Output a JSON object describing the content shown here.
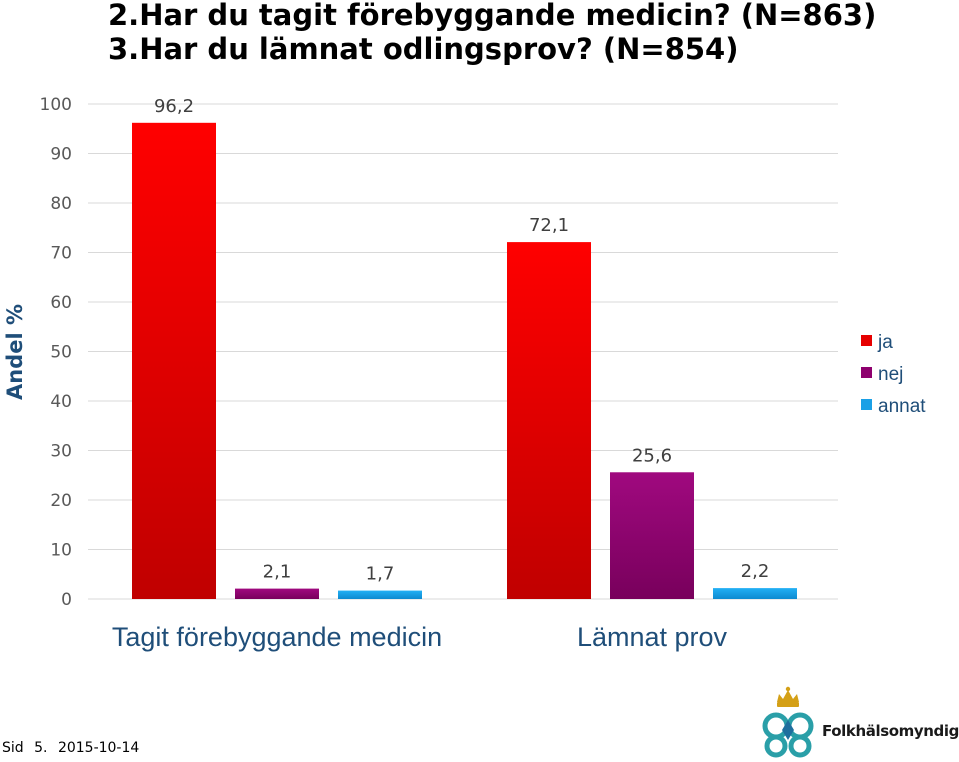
{
  "header": {
    "title_line1": "2.Har du tagit förebyggande medicin? (N=863)",
    "title_line2": "3.Har du lämnat odlingsprov? (N=854)"
  },
  "chart_data": {
    "type": "bar",
    "categories": [
      "Tagit förebyggande medicin",
      "Lämnat prov"
    ],
    "series": [
      {
        "name": "ja",
        "values": [
          96.2,
          72.1
        ],
        "labels": [
          "96,2",
          "72,1"
        ],
        "color": "#e60000"
      },
      {
        "name": "nej",
        "values": [
          2.1,
          25.6
        ],
        "labels": [
          "2,1",
          "25,6"
        ],
        "color": "#8e006e"
      },
      {
        "name": "annat",
        "values": [
          1.7,
          2.2
        ],
        "labels": [
          "1,7",
          "2,2"
        ],
        "color": "#1aa0e6"
      }
    ],
    "ylabel": "Andel %",
    "ylim": [
      0,
      100
    ],
    "yticks": [
      "0",
      "10",
      "20",
      "30",
      "40",
      "50",
      "60",
      "70",
      "80",
      "90",
      "100"
    ],
    "grid": true,
    "legend_position": "right"
  },
  "footer": {
    "page_label": "Sid",
    "page_number": "5.",
    "date": "2015-10-14"
  },
  "logo": {
    "text": "Folkhälsomyndigheten",
    "icon": "crowned-knot-emblem-icon"
  }
}
